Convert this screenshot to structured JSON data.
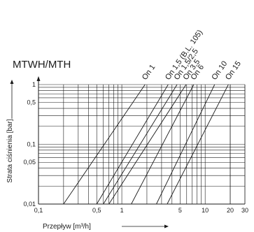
{
  "chart_data": {
    "type": "line",
    "title": "MTWH/MTH",
    "xlabel": "Przepływ [m³/h]",
    "ylabel": "Strata ciśnienia [bar]",
    "x_scale": "log",
    "y_scale": "log",
    "xlim": [
      0.1,
      30
    ],
    "ylim": [
      0.01,
      1
    ],
    "grid": true,
    "x_ticks": [
      "0,1",
      "0,5",
      "1",
      "5",
      "10",
      "20",
      "30"
    ],
    "x_tick_values": [
      0.1,
      0.5,
      1,
      5,
      10,
      20,
      30
    ],
    "y_ticks": [
      "0,01",
      "0,05",
      "0,1",
      "0,5",
      "1"
    ],
    "y_tick_values": [
      0.01,
      0.05,
      0.1,
      0.5,
      1
    ],
    "series": [
      {
        "name": "On 1",
        "x": [
          0.2,
          1.9
        ],
        "y": [
          0.01,
          1
        ]
      },
      {
        "name": "On 1,5 (B.L. 105)",
        "x": [
          0.5,
          3.6
        ],
        "y": [
          0.01,
          1
        ]
      },
      {
        "name": "On 1,5/2,5",
        "x": [
          0.6,
          4.6
        ],
        "y": [
          0.01,
          1
        ]
      },
      {
        "name": "On 3,5",
        "x": [
          0.7,
          5.9
        ],
        "y": [
          0.01,
          1
        ]
      },
      {
        "name": "On 6",
        "x": [
          1.3,
          7.3
        ],
        "y": [
          0.01,
          1
        ]
      },
      {
        "name": "On 10",
        "x": [
          2.6,
          13
        ],
        "y": [
          0.01,
          1
        ]
      },
      {
        "name": "On 15",
        "x": [
          3.5,
          19
        ],
        "y": [
          0.01,
          1
        ]
      }
    ]
  }
}
